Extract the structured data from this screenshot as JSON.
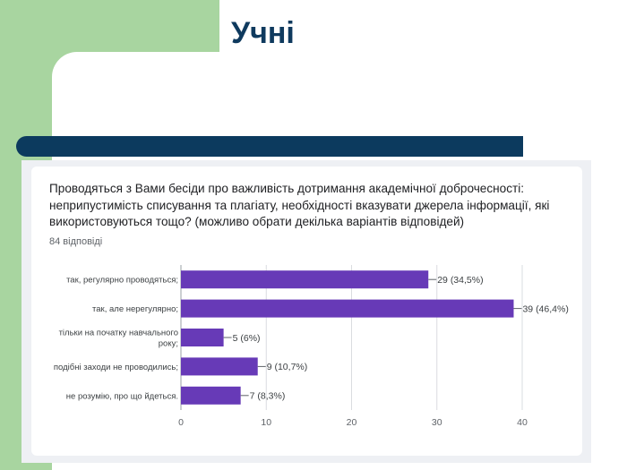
{
  "slide": {
    "title": "Учні"
  },
  "card": {
    "question": "Проводяться з Вами бесіди про важливість дотримання академічної доброчесності: неприпустимість списування та плагіату, необхідності вказувати джерела інформації, які використовуються тощо? (можливо обрати декілька варіантів відповідей)",
    "responses": "84 відповіді"
  },
  "colors": {
    "bar": "#673ab7",
    "title": "#0f3a5e",
    "navy_bar": "#0c3a5e",
    "green_band": "#a8d5a0"
  },
  "chart_data": {
    "type": "bar",
    "orientation": "horizontal",
    "categories": [
      [
        "так, регулярно проводяться;"
      ],
      [
        "так, але нерегулярно;"
      ],
      [
        "тільки на початку навчального",
        "року;"
      ],
      [
        "подібні заходи не проводились;"
      ],
      [
        "не розумію, про що йдеться."
      ]
    ],
    "values": [
      29,
      39,
      5,
      9,
      7
    ],
    "data_labels": [
      "29 (34,5%)",
      "39 (46,4%)",
      "5 (6%)",
      "9 (10,7%)",
      "7 (8,3%)"
    ],
    "xlim": [
      0,
      40
    ],
    "xticks": [
      0,
      10,
      20,
      30,
      40
    ],
    "grid": true,
    "legend": "none"
  }
}
